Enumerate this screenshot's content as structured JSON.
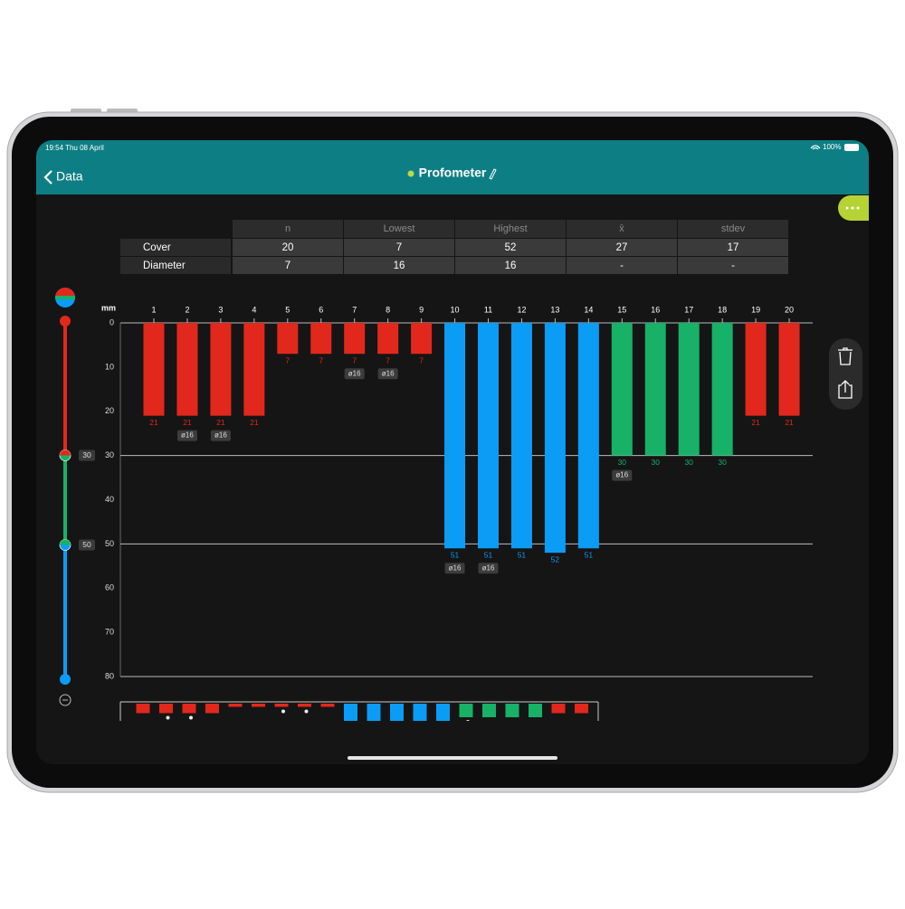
{
  "status": {
    "time": "19:54 Thu 08 April",
    "battery": "100%"
  },
  "nav": {
    "back": "Data",
    "title": "Profometer"
  },
  "table": {
    "header": [
      "n",
      "Lowest",
      "Highest",
      "x̄",
      "stdev"
    ],
    "rows": [
      [
        "Cover",
        20,
        7,
        52,
        27,
        17
      ],
      [
        "Diameter",
        7,
        16,
        16,
        "-",
        "-"
      ]
    ]
  },
  "chart_data": {
    "type": "bar",
    "y_label": "mm",
    "categories": [
      "1",
      "2",
      "3",
      "4",
      "5",
      "6",
      "7",
      "8",
      "9",
      "10",
      "11",
      "12",
      "13",
      "14",
      "15",
      "16",
      "17",
      "18",
      "19",
      "20"
    ],
    "values": [
      21,
      21,
      21,
      21,
      7,
      7,
      7,
      7,
      7,
      51,
      51,
      51,
      52,
      51,
      30,
      30,
      30,
      30,
      21,
      21
    ],
    "diameter_labels": [
      null,
      "ø16",
      "ø16",
      null,
      null,
      null,
      "ø16",
      "ø16",
      null,
      "ø16",
      "ø16",
      null,
      null,
      null,
      "ø16",
      null,
      null,
      null,
      null,
      null
    ],
    "ylim": [
      0,
      80
    ],
    "yticks": [
      0,
      10,
      20,
      30,
      40,
      50,
      60,
      70,
      80
    ],
    "inverted": true,
    "thresholds": [
      30,
      50
    ],
    "zone_colors": [
      "#e2281c",
      "#17b167",
      "#0b9cf6"
    ]
  }
}
